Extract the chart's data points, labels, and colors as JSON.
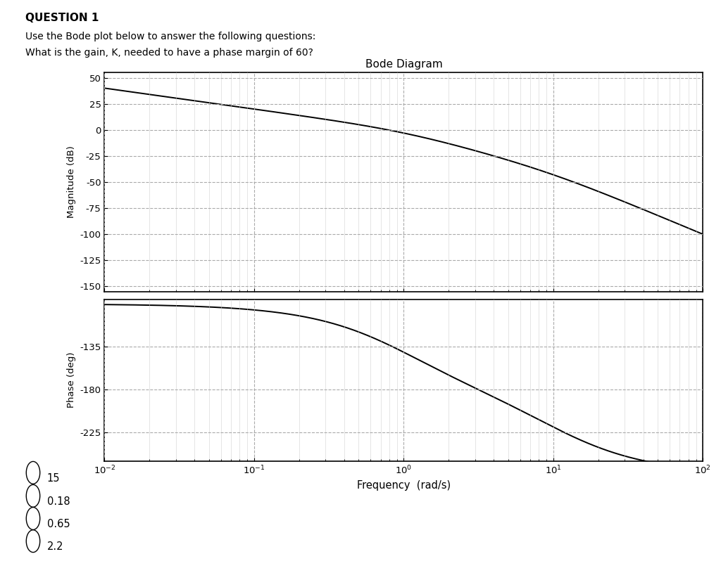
{
  "title": "Bode Diagram",
  "freq_min": 0.01,
  "freq_max": 100,
  "mag_ylim": [
    -155,
    55
  ],
  "mag_yticks": [
    50,
    25,
    0,
    -25,
    -50,
    -75,
    -100,
    -125,
    -150
  ],
  "phase_ylim": [
    -255,
    -85
  ],
  "phase_yticks": [
    -135,
    -180,
    -225
  ],
  "xlabel": "Frequency  (rad/s)",
  "ylabel_mag": "Magnitude (dB)",
  "ylabel_phase": "Phase (deg)",
  "line_color": "#000000",
  "grid_major_color": "#aaaaaa",
  "grid_minor_color": "#cccccc",
  "question_title": "QUESTION 1",
  "question_text1": "Use the Bode plot below to answer the following questions:",
  "question_text2": "What is the gain, K, needed to have a phase margin of 60?",
  "choices": [
    "15",
    "0.18",
    "0.65",
    "2.2"
  ],
  "background_color": "#ffffff",
  "fig_width": 10.24,
  "fig_height": 8.25,
  "dpi": 100
}
